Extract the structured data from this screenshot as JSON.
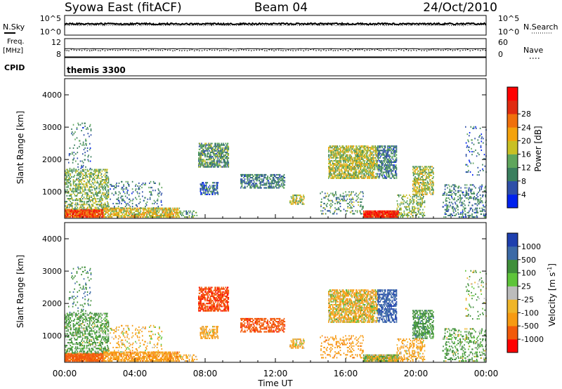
{
  "header": {
    "title": "Syowa East (fitACF)",
    "beam": "Beam 04",
    "date": "24/Oct/2010"
  },
  "status_panels": {
    "nsky_label": "N.Sky",
    "nsky_ticks": [
      "10^5",
      "10^0"
    ],
    "nsearch_label": "N.Search",
    "nsearch_ticks": [
      "10^5",
      "10^0"
    ],
    "freq_label": "Freq.",
    "freq_unit": "[MHz]",
    "freq_ticks": [
      "12",
      "8"
    ],
    "nave_label": "Nave",
    "nave_ticks": [
      "60",
      "0"
    ],
    "cpid_label": "CPID",
    "cpid_value": "themis 3300"
  },
  "colors": {
    "power_scale": [
      "#0022ee",
      "#2e4fa8",
      "#3a7f5e",
      "#5fa65c",
      "#c8c024",
      "#f4a20c",
      "#f0700c",
      "#e02b10",
      "#ff0000"
    ],
    "velocity_scale": [
      "#ff0000",
      "#f25a0a",
      "#f79a12",
      "#efb52a",
      "#bcbcbc",
      "#5ec43a",
      "#3f8f3a",
      "#3c6aa6",
      "#1e3fae"
    ]
  },
  "chart_data": [
    {
      "type": "heatmap",
      "name": "power",
      "xlabel": "",
      "ylabel": "Slant Range [km]",
      "xlim": [
        0,
        24
      ],
      "ylim": [
        180,
        4500
      ],
      "yticks": [
        "1000",
        "2000",
        "3000",
        "4000"
      ],
      "colorbar_label": "Power [dB]",
      "colorbar_ticks": [
        "4",
        "8",
        "12",
        "16",
        "20",
        "24",
        "28"
      ],
      "clim": [
        0,
        30
      ]
    },
    {
      "type": "heatmap",
      "name": "velocity",
      "xlabel": "Time UT",
      "ylabel": "Slant Range [km]",
      "xlim": [
        0,
        24
      ],
      "ylim": [
        180,
        4500
      ],
      "xticks": [
        "00:00",
        "04:00",
        "08:00",
        "12:00",
        "16:00",
        "20:00",
        "00:00"
      ],
      "yticks": [
        "1000",
        "2000",
        "3000",
        "4000"
      ],
      "colorbar_label": "Velocity [m s",
      "colorbar_label_sup": "-1",
      "colorbar_ticks": [
        "1000",
        "500",
        "100",
        "25",
        "-25",
        "-100",
        "-500",
        "-1000"
      ]
    }
  ],
  "echo_regions": [
    {
      "t0": 0.0,
      "t1": 2.2,
      "r0": 200,
      "r1": 450,
      "dens": 0.85,
      "p": 24,
      "v": -700
    },
    {
      "t0": 0.0,
      "t1": 2.5,
      "r0": 450,
      "r1": 1700,
      "dens": 0.32,
      "p": 12,
      "v": 200
    },
    {
      "t0": 0.2,
      "t1": 1.5,
      "r0": 1700,
      "r1": 3100,
      "dens": 0.08,
      "p": 8,
      "v": 400
    },
    {
      "t0": 2.2,
      "t1": 6.5,
      "r0": 200,
      "r1": 480,
      "dens": 0.55,
      "p": 16,
      "v": -300
    },
    {
      "t0": 2.5,
      "t1": 5.5,
      "r0": 480,
      "r1": 1300,
      "dens": 0.1,
      "p": 8,
      "v": -150
    },
    {
      "t0": 6.5,
      "t1": 7.5,
      "r0": 200,
      "r1": 400,
      "dens": 0.25,
      "p": 10,
      "v": -200
    },
    {
      "t0": 7.6,
      "t1": 9.3,
      "r0": 1750,
      "r1": 2500,
      "dens": 0.5,
      "p": 10,
      "v": -900
    },
    {
      "t0": 7.7,
      "t1": 8.7,
      "r0": 900,
      "r1": 1300,
      "dens": 0.4,
      "p": 6,
      "v": -200
    },
    {
      "t0": 10.0,
      "t1": 12.5,
      "r0": 1100,
      "r1": 1550,
      "dens": 0.45,
      "p": 8,
      "v": -800
    },
    {
      "t0": 12.8,
      "t1": 13.6,
      "r0": 600,
      "r1": 900,
      "dens": 0.45,
      "p": 14,
      "v": -150
    },
    {
      "t0": 15.0,
      "t1": 17.8,
      "r0": 1400,
      "r1": 2400,
      "dens": 0.55,
      "p": 14,
      "v": -120
    },
    {
      "t0": 14.5,
      "t1": 17.0,
      "r0": 300,
      "r1": 1000,
      "dens": 0.15,
      "p": 10,
      "v": -300
    },
    {
      "t0": 17.0,
      "t1": 19.0,
      "r0": 200,
      "r1": 420,
      "dens": 0.9,
      "p": 26,
      "v": 0
    },
    {
      "t0": 17.8,
      "t1": 18.9,
      "r0": 1400,
      "r1": 2400,
      "dens": 0.45,
      "p": 8,
      "v": 900
    },
    {
      "t0": 19.8,
      "t1": 21.0,
      "r0": 900,
      "r1": 1800,
      "dens": 0.45,
      "p": 14,
      "v": 300
    },
    {
      "t0": 18.9,
      "t1": 20.5,
      "r0": 200,
      "r1": 900,
      "dens": 0.25,
      "p": 12,
      "v": -200
    },
    {
      "t0": 21.5,
      "t1": 24.0,
      "r0": 200,
      "r1": 1200,
      "dens": 0.2,
      "p": 8,
      "v": 200
    },
    {
      "t0": 22.8,
      "t1": 24.0,
      "r0": 1500,
      "r1": 3000,
      "dens": 0.05,
      "p": 6,
      "v": 100
    }
  ]
}
